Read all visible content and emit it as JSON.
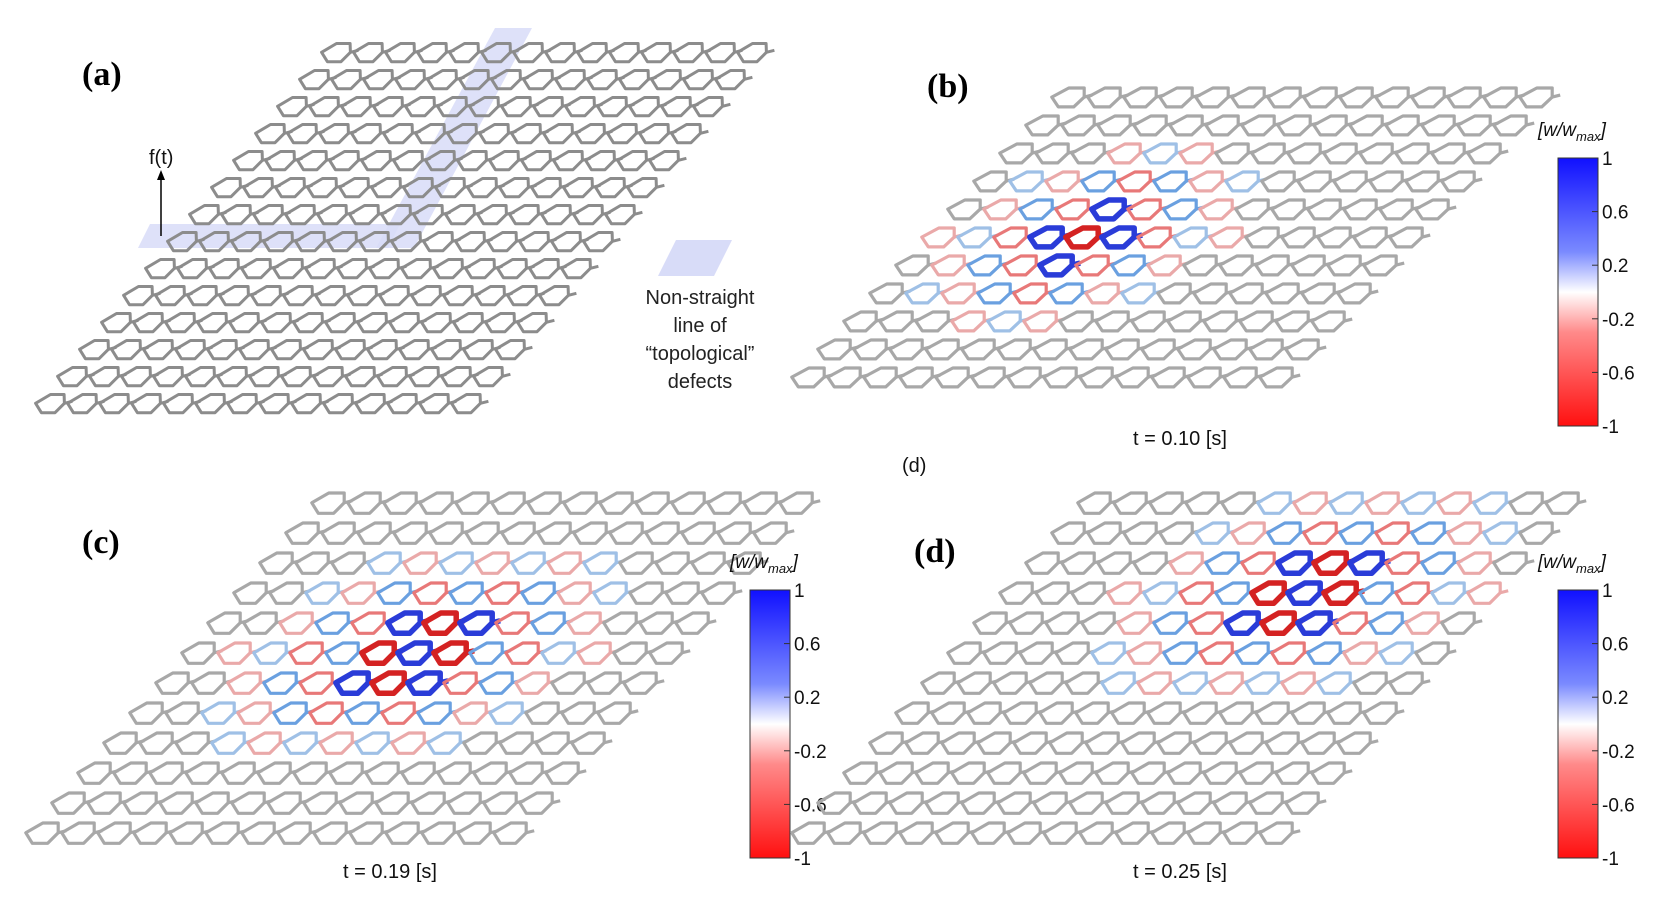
{
  "panels": [
    {
      "id": "a",
      "label": "(a)",
      "force_label": "f(t)",
      "caption": "",
      "note_lines": [
        "Non-straight",
        "line of",
        "“topological”",
        "defects"
      ]
    },
    {
      "id": "b",
      "label": "(b)",
      "caption": "t = 0.10 [s]"
    },
    {
      "id": "c",
      "label": "(c)",
      "caption": "t = 0.19 [s]"
    },
    {
      "id": "d",
      "label": "(d)",
      "caption": "t = 0.25 [s]"
    }
  ],
  "stray_label": "(d)",
  "colorbar": {
    "title": "[w/w",
    "title_sub": "max",
    "title_end": "]",
    "ticks": [
      "1",
      "0.6",
      "0.2",
      "-0.2",
      "-0.6",
      "-1"
    ],
    "colors": {
      "max": "#1a1aff",
      "mid": "#ffffff",
      "min": "#ff1a1a"
    }
  },
  "colors": {
    "lattice": "#9a9a9a",
    "defect_band": "#d8dcf8",
    "blue": "#2a3cd8",
    "red": "#d42222",
    "light_blue": "#6aa0e0",
    "light_red": "#e87878"
  }
}
